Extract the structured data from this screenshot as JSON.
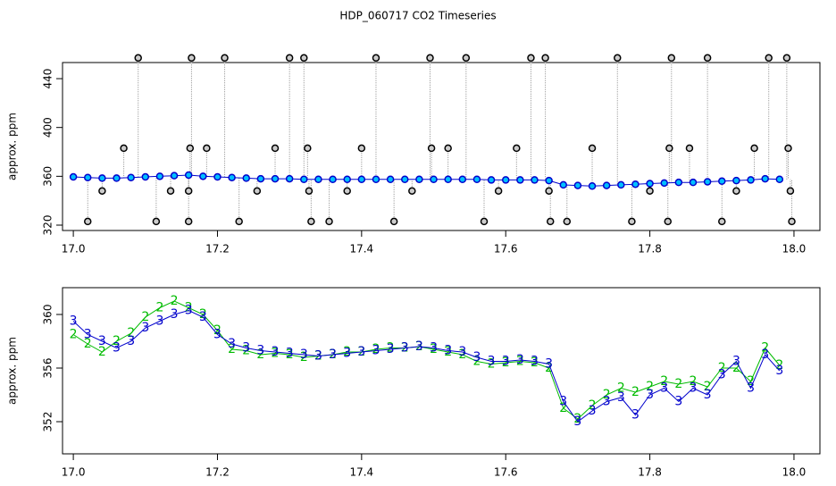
{
  "chart_data": [
    {
      "type": "scatter",
      "title": "HDP_060717  CO2 Timeseries",
      "ylabel": "approx. ppm",
      "xlim": [
        16.985,
        18.036
      ],
      "ylim": [
        315.6,
        453.2
      ],
      "xticks": [
        {
          "value": 17,
          "label": "17.0"
        },
        17.2,
        17.4,
        17.6,
        17.8,
        {
          "value": 18,
          "label": "18.0"
        }
      ],
      "yticks": [
        320,
        360,
        400,
        440
      ],
      "x": [
        17.0,
        17.02,
        17.04,
        17.06,
        17.08,
        17.1,
        17.12,
        17.14,
        17.16,
        17.18,
        17.2,
        17.22,
        17.24,
        17.26,
        17.28,
        17.3,
        17.32,
        17.34,
        17.36,
        17.38,
        17.4,
        17.42,
        17.44,
        17.46,
        17.48,
        17.5,
        17.52,
        17.54,
        17.56,
        17.58,
        17.6,
        17.62,
        17.64,
        17.66,
        17.68,
        17.7,
        17.72,
        17.74,
        17.76,
        17.78,
        17.8,
        17.82,
        17.84,
        17.86,
        17.88,
        17.9,
        17.92,
        17.94,
        17.96,
        17.98
      ],
      "series": [
        {
          "color": "#0000cc",
          "fill": "#00bfff",
          "values": [
            359.5,
            359,
            358.5,
            358.5,
            359,
            359.5,
            360,
            360.5,
            361,
            360,
            359.5,
            359,
            358.5,
            358,
            358,
            358,
            357.5,
            357.5,
            357.5,
            357.5,
            357.5,
            357.5,
            357.5,
            357.5,
            357.5,
            357.5,
            357.5,
            357.5,
            357.5,
            357,
            357,
            357,
            357,
            356.5,
            353,
            352.5,
            352,
            352.5,
            353,
            353.5,
            354,
            354.5,
            355,
            355,
            355.5,
            356,
            356.5,
            357,
            358,
            357.5
          ]
        }
      ],
      "points": {
        "color": "#000000",
        "x": [
          17.02,
          17.04,
          17.07,
          17.09,
          17.115,
          17.135,
          17.16,
          17.16,
          17.162,
          17.164,
          17.185,
          17.21,
          17.23,
          17.255,
          17.28,
          17.3,
          17.32,
          17.325,
          17.327,
          17.33,
          17.355,
          17.38,
          17.4,
          17.42,
          17.445,
          17.47,
          17.495,
          17.497,
          17.52,
          17.545,
          17.57,
          17.59,
          17.615,
          17.635,
          17.655,
          17.66,
          17.662,
          17.685,
          17.72,
          17.755,
          17.775,
          17.8,
          17.825,
          17.827,
          17.83,
          17.855,
          17.88,
          17.9,
          17.92,
          17.945,
          17.965,
          17.99,
          17.992,
          17.995,
          17.997
        ],
        "values": [
          323,
          348,
          383,
          457,
          323,
          348,
          323,
          348,
          383,
          457,
          383,
          457,
          323,
          348,
          383,
          457,
          457,
          383,
          348,
          323,
          323,
          348,
          383,
          457,
          323,
          348,
          457,
          383,
          383,
          457,
          323,
          348,
          383,
          457,
          457,
          348,
          323,
          323,
          383,
          457,
          323,
          348,
          323,
          383,
          457,
          383,
          457,
          323,
          348,
          383,
          457,
          457,
          383,
          348,
          323
        ]
      }
    },
    {
      "type": "line",
      "ylabel": "approx. ppm",
      "xlim": [
        16.985,
        18.036
      ],
      "ylim": [
        349.6,
        362
      ],
      "xticks": [
        {
          "value": 17,
          "label": "17.0"
        },
        17.2,
        17.4,
        17.6,
        17.8,
        {
          "value": 18,
          "label": "18.0"
        }
      ],
      "yticks": [
        352,
        356,
        360
      ],
      "x": [
        17.0,
        17.02,
        17.04,
        17.06,
        17.08,
        17.1,
        17.12,
        17.14,
        17.16,
        17.18,
        17.2,
        17.22,
        17.24,
        17.26,
        17.28,
        17.3,
        17.32,
        17.34,
        17.36,
        17.38,
        17.4,
        17.42,
        17.44,
        17.46,
        17.48,
        17.5,
        17.52,
        17.54,
        17.56,
        17.58,
        17.6,
        17.62,
        17.64,
        17.66,
        17.68,
        17.7,
        17.72,
        17.74,
        17.76,
        17.78,
        17.8,
        17.82,
        17.84,
        17.86,
        17.88,
        17.9,
        17.92,
        17.94,
        17.96,
        17.98
      ],
      "series": [
        {
          "marker": "2",
          "color": "#00bb00",
          "values": [
            358.5,
            357.8,
            357.2,
            358.0,
            358.6,
            359.8,
            360.5,
            361.0,
            360.5,
            360.0,
            358.8,
            357.4,
            357.3,
            357.0,
            357.1,
            357.0,
            356.8,
            356.9,
            357.0,
            357.2,
            357.2,
            357.4,
            357.5,
            357.5,
            357.6,
            357.4,
            357.2,
            357.0,
            356.5,
            356.3,
            356.4,
            356.5,
            356.4,
            356.0,
            353.0,
            352.2,
            353.2,
            354.0,
            354.5,
            354.2,
            354.6,
            355.0,
            354.8,
            355.0,
            354.6,
            356.0,
            356.0,
            355.0,
            357.5,
            356.2
          ]
        },
        {
          "marker": "3",
          "color": "#0000cc",
          "values": [
            359.5,
            358.5,
            358.0,
            357.5,
            358.0,
            359.0,
            359.5,
            360.0,
            360.3,
            359.8,
            358.5,
            357.8,
            357.5,
            357.3,
            357.2,
            357.1,
            357.0,
            356.9,
            357.0,
            357.1,
            357.2,
            357.3,
            357.4,
            357.5,
            357.6,
            357.5,
            357.3,
            357.2,
            356.8,
            356.5,
            356.5,
            356.6,
            356.5,
            356.3,
            353.5,
            352.0,
            352.8,
            353.5,
            353.8,
            352.5,
            354.0,
            354.5,
            353.5,
            354.5,
            354.0,
            355.5,
            356.5,
            354.5,
            357.0,
            355.8
          ]
        }
      ]
    }
  ]
}
